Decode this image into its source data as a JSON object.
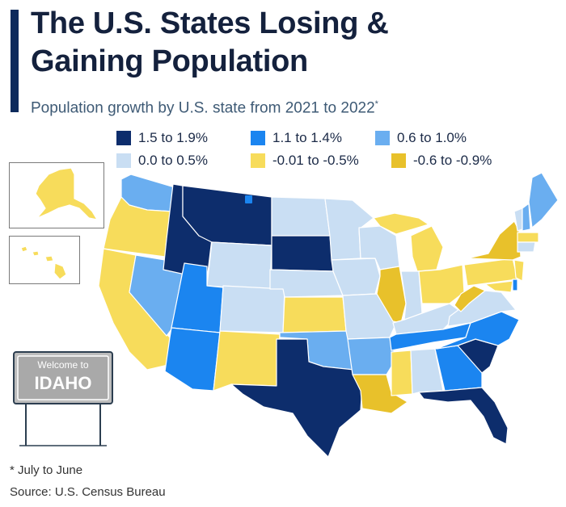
{
  "header": {
    "title_line1": "The U.S. States Losing &",
    "title_line2": "Gaining Population",
    "subtitle": "Population growth by U.S. state from 2021 to 2022",
    "subtitle_mark": "*"
  },
  "legend": [
    {
      "label": "1.5 to 1.9%",
      "color": "#0d2d6c"
    },
    {
      "label": "1.1 to 1.4%",
      "color": "#1b85f0"
    },
    {
      "label": "0.6 to 1.0%",
      "color": "#6aaef0"
    },
    {
      "label": "0.0 to 0.5%",
      "color": "#c9def3"
    },
    {
      "label": "-0.01 to -0.5%",
      "color": "#f7dc5b"
    },
    {
      "label": "-0.6 to -0.9%",
      "color": "#e8c12b"
    }
  ],
  "sign": {
    "welcome": "Welcome to",
    "state": "IDAHO"
  },
  "footer": {
    "footnote": "* July to June",
    "source": "Source: U.S. Census Bureau"
  }
}
